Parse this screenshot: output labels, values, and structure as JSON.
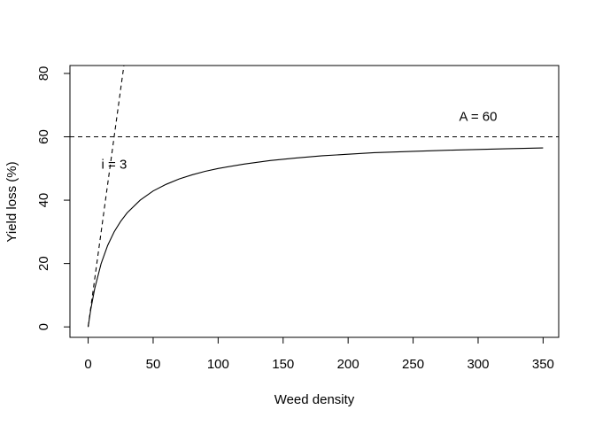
{
  "chart_data": {
    "type": "line",
    "title": "",
    "xlabel": "Weed density",
    "ylabel": "Yield loss (%)",
    "xlim": [
      -14,
      362
    ],
    "ylim": [
      -3.3,
      82.5
    ],
    "xticks": [
      0,
      50,
      100,
      150,
      200,
      250,
      300,
      350
    ],
    "yticks": [
      0,
      20,
      40,
      60,
      80
    ],
    "grid": false,
    "legend": "none",
    "model": {
      "i": 3,
      "A": 60
    },
    "series": [
      {
        "style": "solid",
        "color": "#000000",
        "x": [
          0,
          2,
          5,
          10,
          15,
          20,
          25,
          30,
          40,
          50,
          60,
          70,
          80,
          90,
          100,
          120,
          140,
          160,
          180,
          200,
          220,
          250,
          280,
          300,
          320,
          350
        ],
        "y": [
          0,
          5.45,
          12.0,
          20.0,
          25.7,
          30.0,
          33.3,
          36.0,
          40.0,
          42.9,
          45.0,
          46.7,
          48.0,
          49.1,
          50.0,
          51.4,
          52.5,
          53.3,
          54.0,
          54.5,
          55.0,
          55.4,
          55.8,
          56.0,
          56.2,
          56.5
        ]
      },
      {
        "style": "dashed",
        "color": "#000000",
        "x": [
          0,
          27.5
        ],
        "y": [
          0,
          82.5
        ]
      },
      {
        "style": "dashed",
        "color": "#000000",
        "x": [
          -14,
          362
        ],
        "y": [
          60,
          60
        ]
      }
    ],
    "annotations": [
      {
        "text": "i = 3",
        "x": 20,
        "y": 50
      },
      {
        "text": "A = 60",
        "x": 300,
        "y": 65
      }
    ]
  }
}
